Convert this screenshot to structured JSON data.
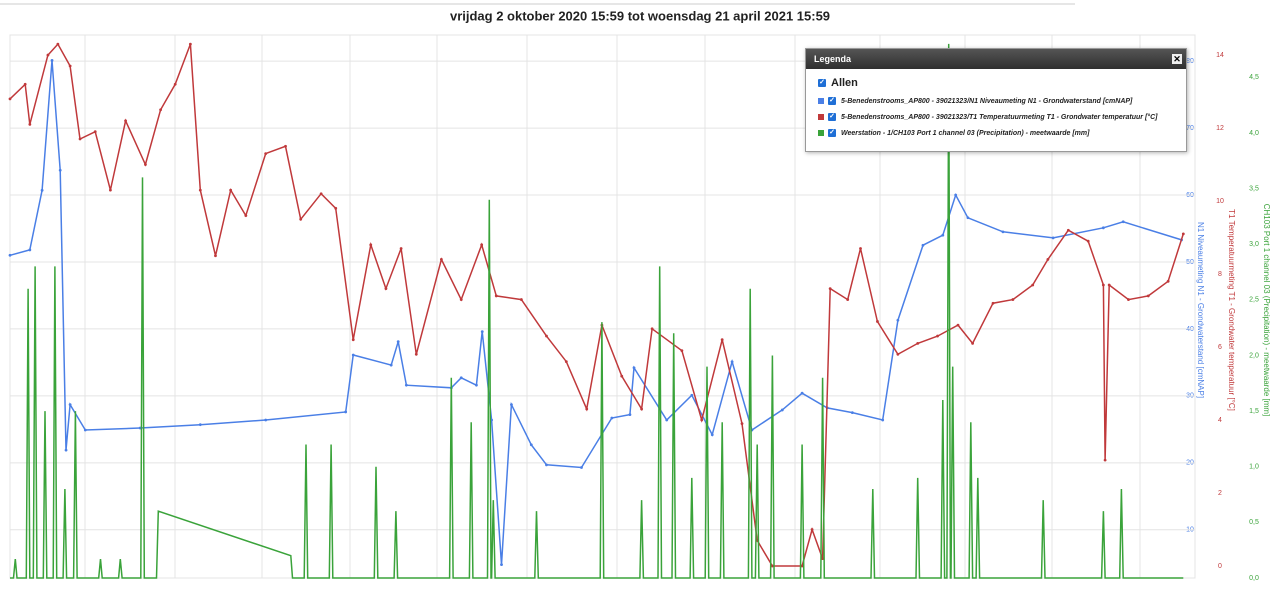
{
  "chart_data": {
    "type": "line",
    "title": "vrijdag 2 oktober 2020 15:59 tot woensdag 21 april 2021 15:59",
    "xlim": [
      0,
      203
    ],
    "ylim": [
      2.8,
      83.9
    ],
    "yticks": [
      10,
      20,
      30,
      40,
      50,
      60,
      70,
      80
    ],
    "ylabel": "N1 Niveaumeting N1 - Grondwaterstand [cmNAP]",
    "y2lim": [
      -0.33,
      14.55
    ],
    "y2ticks": [
      0,
      2,
      4,
      6,
      8,
      10,
      12,
      14
    ],
    "y2label": "T1 Temperatuurmeting T1 - Grondwater temperatuur [°C]",
    "y3lim": [
      0,
      4.88
    ],
    "y3ticks": [
      {
        "value": 0,
        "label": "0,0"
      },
      {
        "value": 0.5,
        "label": "0,5"
      },
      {
        "value": 1,
        "label": "1,0"
      },
      {
        "value": 1.5,
        "label": "1,5"
      },
      {
        "value": 2,
        "label": "2,0"
      },
      {
        "value": 2.5,
        "label": "2,5"
      },
      {
        "value": 3,
        "label": "3,0"
      },
      {
        "value": 3.5,
        "label": "3,5"
      },
      {
        "value": 4,
        "label": "4,0"
      },
      {
        "value": 4.5,
        "label": "4,5"
      }
    ],
    "y3label": "CH103 Port 1 channel 03 (Precipitation) - meetwaarde [mm]",
    "grid": true,
    "legend": {
      "title": "Legenda",
      "all": "Allen",
      "position": "top-right"
    },
    "series": [
      {
        "name": "5-Benedenstrooms_AP800 - 39021323/N1 Niveaumeting N1 - Grondwaterstand [cmNAP]",
        "color": "#4a7fe6",
        "axis": "y",
        "x": [
          0,
          3.4,
          5.5,
          7.2,
          8.6,
          9.6,
          10.3,
          12.9,
          22.3,
          32.6,
          43.8,
          57.5,
          58.8,
          65.3,
          66.5,
          67.9,
          75.6,
          77.3,
          79.9,
          80.9,
          82.5,
          84.2,
          85.9,
          89.3,
          91.9,
          97.9,
          103.1,
          106.2,
          106.9,
          112.5,
          116.8,
          120.3,
          123.7,
          127.1,
          132.3,
          135.7,
          140.0,
          144.3,
          149.5,
          152.1,
          156.4,
          159.8,
          162.0,
          164.1,
          170.1,
          178.7,
          187.3,
          190.7,
          200.7
        ],
        "values": [
          51.0,
          51.8,
          60.7,
          80.1,
          63.7,
          21.9,
          28.7,
          24.9,
          25.2,
          25.7,
          26.4,
          27.6,
          36.1,
          34.6,
          38.1,
          31.6,
          31.2,
          32.7,
          31.6,
          39.6,
          26.4,
          4.8,
          28.7,
          22.7,
          19.7,
          19.3,
          26.7,
          27.2,
          34.2,
          26.4,
          30.1,
          24.2,
          35.1,
          24.9,
          27.9,
          30.4,
          28.2,
          27.5,
          26.4,
          41.3,
          52.5,
          54.0,
          60.0,
          56.6,
          54.5,
          53.6,
          55.1,
          56.0,
          53.3
        ]
      },
      {
        "name": "5-Benedenstrooms_AP800 - 39021323/T1 Temperatuurmeting T1 - Grondwater temperatuur [°C]",
        "color": "#c0393b",
        "axis": "y2",
        "x": [
          0,
          2.6,
          3.4,
          6.5,
          8.2,
          10.3,
          12.0,
          14.6,
          17.2,
          19.8,
          23.2,
          25.8,
          28.3,
          30.9,
          32.6,
          35.2,
          37.8,
          40.4,
          43.8,
          47.2,
          49.8,
          53.3,
          55.8,
          58.8,
          61.8,
          64.4,
          67.0,
          69.6,
          73.9,
          77.3,
          80.8,
          83.3,
          87.6,
          91.9,
          95.3,
          98.8,
          101.4,
          104.8,
          108.2,
          110.0,
          115.1,
          118.5,
          122.0,
          125.4,
          128.0,
          130.6,
          135.7,
          137.4,
          139.2,
          140.5,
          143.5,
          145.7,
          148.6,
          152.1,
          155.5,
          158.9,
          162.4,
          164.9,
          168.4,
          171.8,
          175.2,
          177.8,
          181.3,
          184.7,
          187.3,
          187.6,
          188.3,
          191.6,
          195.0,
          198.4,
          201.0
        ],
        "values": [
          12.8,
          13.2,
          12.1,
          14.0,
          14.3,
          13.7,
          11.7,
          11.9,
          10.3,
          12.2,
          11.0,
          12.5,
          13.2,
          14.3,
          10.3,
          8.5,
          10.3,
          9.6,
          11.3,
          11.5,
          9.5,
          10.2,
          9.8,
          6.2,
          8.8,
          7.6,
          8.7,
          5.8,
          8.4,
          7.3,
          8.8,
          7.4,
          7.3,
          6.3,
          5.6,
          4.3,
          6.6,
          5.2,
          4.3,
          6.5,
          5.9,
          4.0,
          6.2,
          3.9,
          0.7,
          0.0,
          0.0,
          1.0,
          0.2,
          7.6,
          7.3,
          8.7,
          6.7,
          5.8,
          6.1,
          6.3,
          6.6,
          6.1,
          7.2,
          7.3,
          7.7,
          8.4,
          9.2,
          8.9,
          7.7,
          2.9,
          7.7,
          7.3,
          7.4,
          7.8,
          9.1
        ]
      },
      {
        "name": "Weerstation - 1/CH103 Port 1 channel 03 (Precipitation) - meetwaarde [mm]",
        "color": "#3aa33a",
        "axis": "y3",
        "x": [
          0,
          0.6,
          0.9,
          1.2,
          2.8,
          3.1,
          3.4,
          4.0,
          4.3,
          4.6,
          5.7,
          6.0,
          6.3,
          7.4,
          7.7,
          8.0,
          9.1,
          9.4,
          9.7,
          10.9,
          11.2,
          11.5,
          15.2,
          15.5,
          15.8,
          18.6,
          18.9,
          19.2,
          22.4,
          22.7,
          23.0,
          25.1,
          25.4,
          48.1,
          48.4,
          50.4,
          50.7,
          51.0,
          54.7,
          55.0,
          55.3,
          62.4,
          62.7,
          63.0,
          65.8,
          66.1,
          66.4,
          75.3,
          75.6,
          75.9,
          78.7,
          79.0,
          79.3,
          81.8,
          82.1,
          82.4,
          82.5,
          82.8,
          83.1,
          89.9,
          90.2,
          90.5,
          101.1,
          101.4,
          101.7,
          107.9,
          108.2,
          108.5,
          111.0,
          111.3,
          111.6,
          113.4,
          113.7,
          114.0,
          116.5,
          116.8,
          117.1,
          119.1,
          119.4,
          119.7,
          121.7,
          122.0,
          122.3,
          126.5,
          126.8,
          127.1,
          127.7,
          128.0,
          128.3,
          130.3,
          130.6,
          130.9,
          135.4,
          135.7,
          136.0,
          138.9,
          139.2,
          139.5,
          147.5,
          147.8,
          148.1,
          155.2,
          155.5,
          155.8,
          159.5,
          159.8,
          160.1,
          160.5,
          160.8,
          161.1,
          161.2,
          161.5,
          161.8,
          164.3,
          164.6,
          164.9,
          165.5,
          165.8,
          166.1,
          176.7,
          177.0,
          177.3,
          187.0,
          187.3,
          187.6,
          190.1,
          190.4,
          190.7,
          201
        ],
        "values": [
          0,
          0,
          0.17,
          0,
          0,
          2.6,
          0,
          0,
          2.8,
          0,
          0,
          1.5,
          0,
          0,
          2.8,
          0,
          0,
          0.8,
          0,
          0,
          1.5,
          0,
          0,
          0.17,
          0,
          0,
          0.17,
          0,
          0,
          3.6,
          0,
          0,
          0.6,
          0.2,
          0,
          0,
          1.2,
          0,
          0,
          1.2,
          0,
          0,
          1.0,
          0,
          0,
          0.6,
          0,
          0,
          1.8,
          0,
          0,
          1.4,
          0,
          0,
          3.4,
          0,
          0,
          0.7,
          0,
          0,
          0.6,
          0,
          0,
          2.3,
          0,
          0,
          0.7,
          0,
          0,
          2.8,
          0,
          0,
          2.2,
          0,
          0,
          0.9,
          0,
          0,
          1.9,
          0,
          0,
          1.4,
          0,
          0,
          2.6,
          0,
          0,
          1.2,
          0,
          0,
          2.0,
          0,
          0,
          1.2,
          0,
          0,
          1.8,
          0,
          0,
          0.8,
          0,
          0,
          0.9,
          0,
          0,
          1.6,
          0,
          0,
          4.8,
          0,
          0,
          1.9,
          0,
          0,
          1.4,
          0,
          0,
          0.9,
          0,
          0,
          0.7,
          0,
          0,
          0.6,
          0,
          0,
          0.8,
          0,
          0
        ]
      }
    ]
  }
}
